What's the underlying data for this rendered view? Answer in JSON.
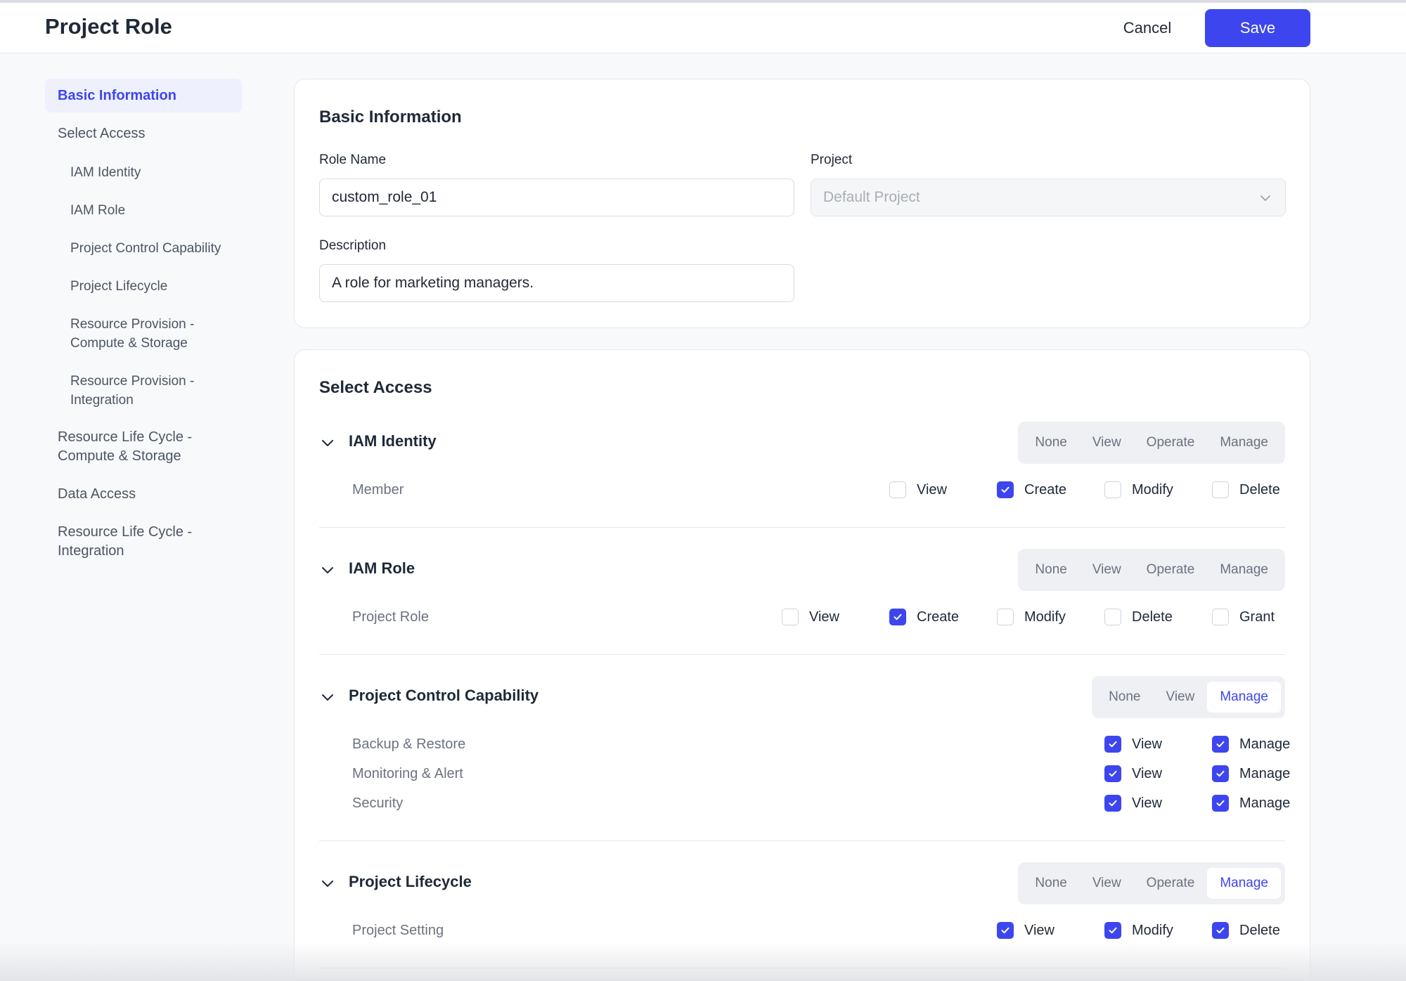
{
  "header": {
    "title": "Project Role",
    "cancel_label": "Cancel",
    "save_label": "Save"
  },
  "sidebar": {
    "items": [
      {
        "label": "Basic Information",
        "active": true
      },
      {
        "label": "Select Access"
      },
      {
        "label": "IAM Identity"
      },
      {
        "label": "IAM Role"
      },
      {
        "label": "Project Control Capability"
      },
      {
        "label": "Project Lifecycle"
      },
      {
        "label": "Resource Provision - Compute & Storage"
      },
      {
        "label": "Resource Provision - Integration"
      },
      {
        "label": "Resource Life Cycle - Compute & Storage"
      },
      {
        "label": "Data Access"
      },
      {
        "label": "Resource Life Cycle - Integration"
      }
    ]
  },
  "basic": {
    "title": "Basic Information",
    "role_name_label": "Role Name",
    "role_name_value": "custom_role_01",
    "project_label": "Project",
    "project_value": "Default Project",
    "description_label": "Description",
    "description_value": "A role for marketing managers."
  },
  "access": {
    "title": "Select Access",
    "sections": [
      {
        "title": "IAM Identity",
        "levels": [
          "None",
          "View",
          "Operate",
          "Manage"
        ],
        "selected": "",
        "rows": [
          {
            "label": "Member",
            "perms": [
              {
                "label": "View",
                "checked": false
              },
              {
                "label": "Create",
                "checked": true
              },
              {
                "label": "Modify",
                "checked": false
              },
              {
                "label": "Delete",
                "checked": false
              }
            ]
          }
        ]
      },
      {
        "title": "IAM Role",
        "levels": [
          "None",
          "View",
          "Operate",
          "Manage"
        ],
        "selected": "",
        "rows": [
          {
            "label": "Project Role",
            "perms": [
              {
                "label": "View",
                "checked": false
              },
              {
                "label": "Create",
                "checked": true
              },
              {
                "label": "Modify",
                "checked": false
              },
              {
                "label": "Delete",
                "checked": false
              },
              {
                "label": "Grant",
                "checked": false
              }
            ]
          }
        ]
      },
      {
        "title": "Project Control Capability",
        "levels": [
          "None",
          "View",
          "Manage"
        ],
        "selected": "Manage",
        "rows": [
          {
            "label": "Backup & Restore",
            "perms": [
              {
                "label": "View",
                "checked": true
              },
              {
                "label": "Manage",
                "checked": true
              }
            ]
          },
          {
            "label": "Monitoring & Alert",
            "perms": [
              {
                "label": "View",
                "checked": true
              },
              {
                "label": "Manage",
                "checked": true
              }
            ]
          },
          {
            "label": "Security",
            "perms": [
              {
                "label": "View",
                "checked": true
              },
              {
                "label": "Manage",
                "checked": true
              }
            ]
          }
        ]
      },
      {
        "title": "Project Lifecycle",
        "levels": [
          "None",
          "View",
          "Operate",
          "Manage"
        ],
        "selected": "Manage",
        "rows": [
          {
            "label": "Project Setting",
            "perms": [
              {
                "label": "View",
                "checked": true
              },
              {
                "label": "Modify",
                "checked": true
              },
              {
                "label": "Delete",
                "checked": true
              }
            ]
          }
        ]
      }
    ]
  },
  "colors": {
    "accent": "#3d46ee",
    "accent_bg": "#eef0fe",
    "page_bg": "#f8f9fb"
  },
  "icons": {
    "section_toggle": "chevron-down-icon",
    "select_arrow": "chevron-down-icon",
    "check": "check-icon"
  }
}
